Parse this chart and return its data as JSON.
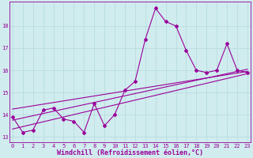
{
  "xlabel": "Windchill (Refroidissement éolien,°C)",
  "background_color": "#d0ecee",
  "grid_color": "#b8dde0",
  "line_color": "#990099",
  "x_values": [
    0,
    1,
    2,
    3,
    4,
    5,
    6,
    7,
    8,
    9,
    10,
    11,
    12,
    13,
    14,
    15,
    16,
    17,
    18,
    19,
    20,
    21,
    22,
    23
  ],
  "y_main": [
    13.9,
    13.2,
    13.3,
    14.2,
    14.3,
    13.8,
    13.7,
    13.2,
    14.5,
    13.5,
    14.0,
    15.1,
    15.5,
    17.4,
    18.8,
    18.2,
    18.0,
    16.9,
    16.0,
    15.9,
    16.0,
    17.2,
    16.0,
    15.9
  ],
  "xlim": [
    -0.3,
    23.3
  ],
  "ylim": [
    12.75,
    19.1
  ],
  "yticks": [
    13,
    14,
    15,
    16,
    17,
    18
  ],
  "xticks": [
    0,
    1,
    2,
    3,
    4,
    5,
    6,
    7,
    8,
    9,
    10,
    11,
    12,
    13,
    14,
    15,
    16,
    17,
    18,
    19,
    20,
    21,
    22,
    23
  ],
  "tick_fontsize": 5.0,
  "xlabel_fontsize": 6.0,
  "marker": "D",
  "marker_size": 2.0,
  "line_width": 0.8,
  "regression_lines": [
    {
      "x0": 0,
      "y0": 13.35,
      "x1": 23,
      "y1": 15.85
    },
    {
      "x0": 0,
      "y0": 13.75,
      "x1": 23,
      "y1": 16.05
    },
    {
      "x0": 0,
      "y0": 14.25,
      "x1": 23,
      "y1": 15.95
    }
  ]
}
